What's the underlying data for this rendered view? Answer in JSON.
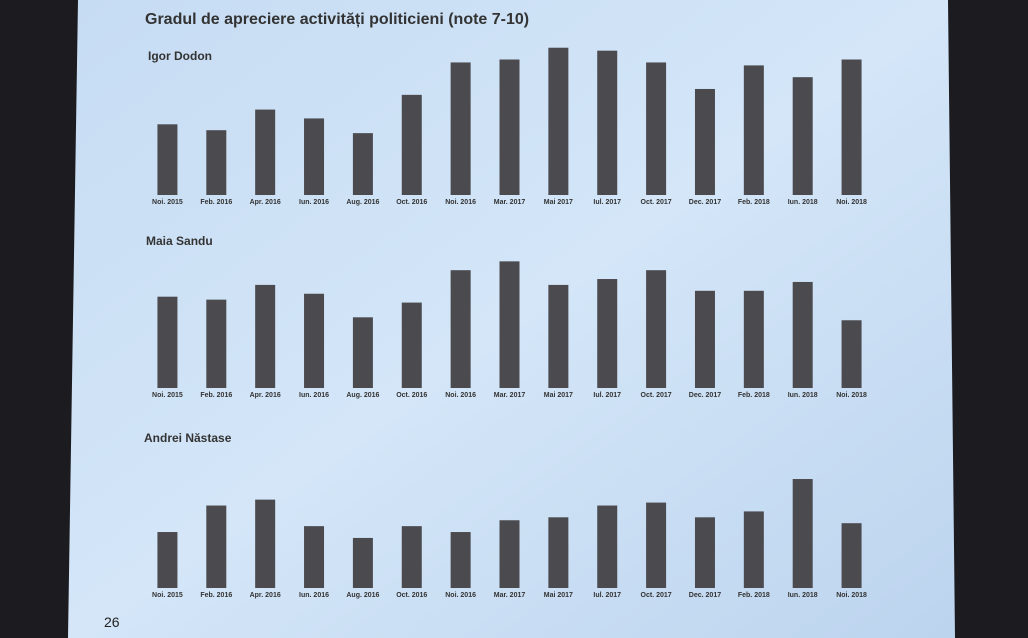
{
  "slide_title": "Gradul de apreciere activități politicieni (note 7-10)",
  "page_number": "26",
  "chart_data": [
    {
      "type": "bar",
      "title": "Igor Dodon",
      "color": "#4b4a4f",
      "categories": [
        "Noi. 2015",
        "Feb. 2016",
        "Apr. 2016",
        "Iun. 2016",
        "Aug. 2016",
        "Oct. 2016",
        "Noi. 2016",
        "Mar. 2017",
        "Mai 2017",
        "Iul. 2017",
        "Oct. 2017",
        "Dec. 2017",
        "Feb. 2018",
        "Iun. 2018",
        "Noi. 2018"
      ],
      "values": [
        24,
        22,
        29,
        26,
        21,
        34,
        45,
        46,
        50,
        49,
        45,
        36,
        44,
        40,
        46
      ],
      "ylim": [
        0,
        55
      ]
    },
    {
      "type": "bar",
      "title": "Maia Sandu",
      "color": "#4b4a4f",
      "categories": [
        "Noi. 2015",
        "Feb. 2016",
        "Apr. 2016",
        "Iun. 2016",
        "Aug. 2016",
        "Oct. 2016",
        "Noi. 2016",
        "Mar. 2017",
        "Mai 2017",
        "Iul. 2017",
        "Oct. 2017",
        "Dec. 2017",
        "Feb. 2018",
        "Iun. 2018",
        "Noi. 2018"
      ],
      "values": [
        31,
        30,
        35,
        32,
        24,
        29,
        40,
        43,
        35,
        37,
        40,
        33,
        33,
        36,
        23
      ],
      "ylim": [
        0,
        55
      ]
    },
    {
      "type": "bar",
      "title": "Andrei Năstase",
      "color": "#4b4a4f",
      "categories": [
        "Noi. 2015",
        "Feb. 2016",
        "Apr. 2016",
        "Iun. 2016",
        "Aug. 2016",
        "Oct. 2016",
        "Noi. 2016",
        "Mar. 2017",
        "Mai 2017",
        "Iul. 2017",
        "Oct. 2017",
        "Dec. 2017",
        "Feb. 2018",
        "Iun. 2018",
        "Noi. 2018"
      ],
      "values": [
        19,
        28,
        30,
        21,
        17,
        21,
        19,
        23,
        24,
        28,
        29,
        24,
        26,
        37,
        22
      ],
      "ylim": [
        0,
        55
      ]
    }
  ]
}
